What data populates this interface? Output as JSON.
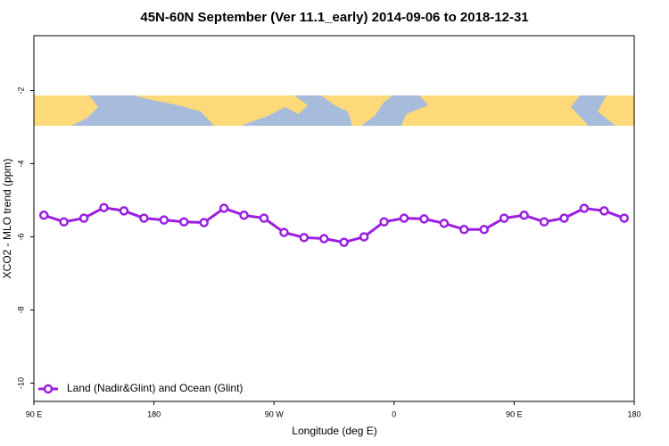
{
  "chart_data": {
    "type": "line",
    "title": "45N-60N September (Ver 11.1_early)   2014-09-06 to 2018-12-31",
    "x_label": "Longitude (deg E)",
    "y_label": "XCO2 - MLO trend (ppm)",
    "x": [
      97.5,
      112.5,
      127.5,
      142.5,
      157.5,
      172.5,
      187.5,
      202.5,
      217.5,
      232.5,
      247.5,
      262.5,
      277.5,
      292.5,
      307.5,
      322.5,
      337.5,
      352.5,
      367.5,
      382.5,
      397.5,
      412.5,
      427.5,
      442.5,
      457.5,
      472.5,
      487.5,
      502.5,
      517.5,
      532.5
    ],
    "series": [
      {
        "name": "Land (Nadir&Glint) and Ocean (Glint)",
        "color": "#9b1fe0",
        "values": [
          -5.41,
          -5.59,
          -5.49,
          -5.2,
          -5.29,
          -5.49,
          -5.54,
          -5.59,
          -5.61,
          -5.22,
          -5.41,
          -5.49,
          -5.88,
          -6.02,
          -6.05,
          -6.15,
          -6.0,
          -5.59,
          -5.49,
          -5.51,
          -5.63,
          -5.8,
          -5.8,
          -5.49,
          -5.41,
          -5.59,
          -5.49,
          -5.22,
          -5.29,
          -5.49
        ]
      }
    ],
    "xlim": [
      90,
      540
    ],
    "xticks": [
      {
        "value": 90,
        "label": "90 E"
      },
      {
        "value": 180,
        "label": "180"
      },
      {
        "value": 270,
        "label": "90 W"
      },
      {
        "value": 360,
        "label": "0"
      },
      {
        "value": 450,
        "label": "90 E"
      },
      {
        "value": 540,
        "label": "180"
      }
    ],
    "ylim": [
      -10.5,
      -0.5
    ],
    "yticks": [
      -2,
      -4,
      -6,
      -8,
      -10
    ],
    "legend": "bottom-left"
  }
}
